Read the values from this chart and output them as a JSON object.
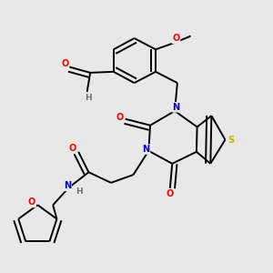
{
  "bg_color": "#e8e8e8",
  "atom_colors": {
    "C": "#000000",
    "N": "#0000cc",
    "O": "#ff0000",
    "S": "#bbbb00",
    "H": "#707070"
  },
  "bond_color": "#000000",
  "bond_width": 1.4,
  "figsize": [
    3.0,
    3.0
  ],
  "dpi": 100
}
